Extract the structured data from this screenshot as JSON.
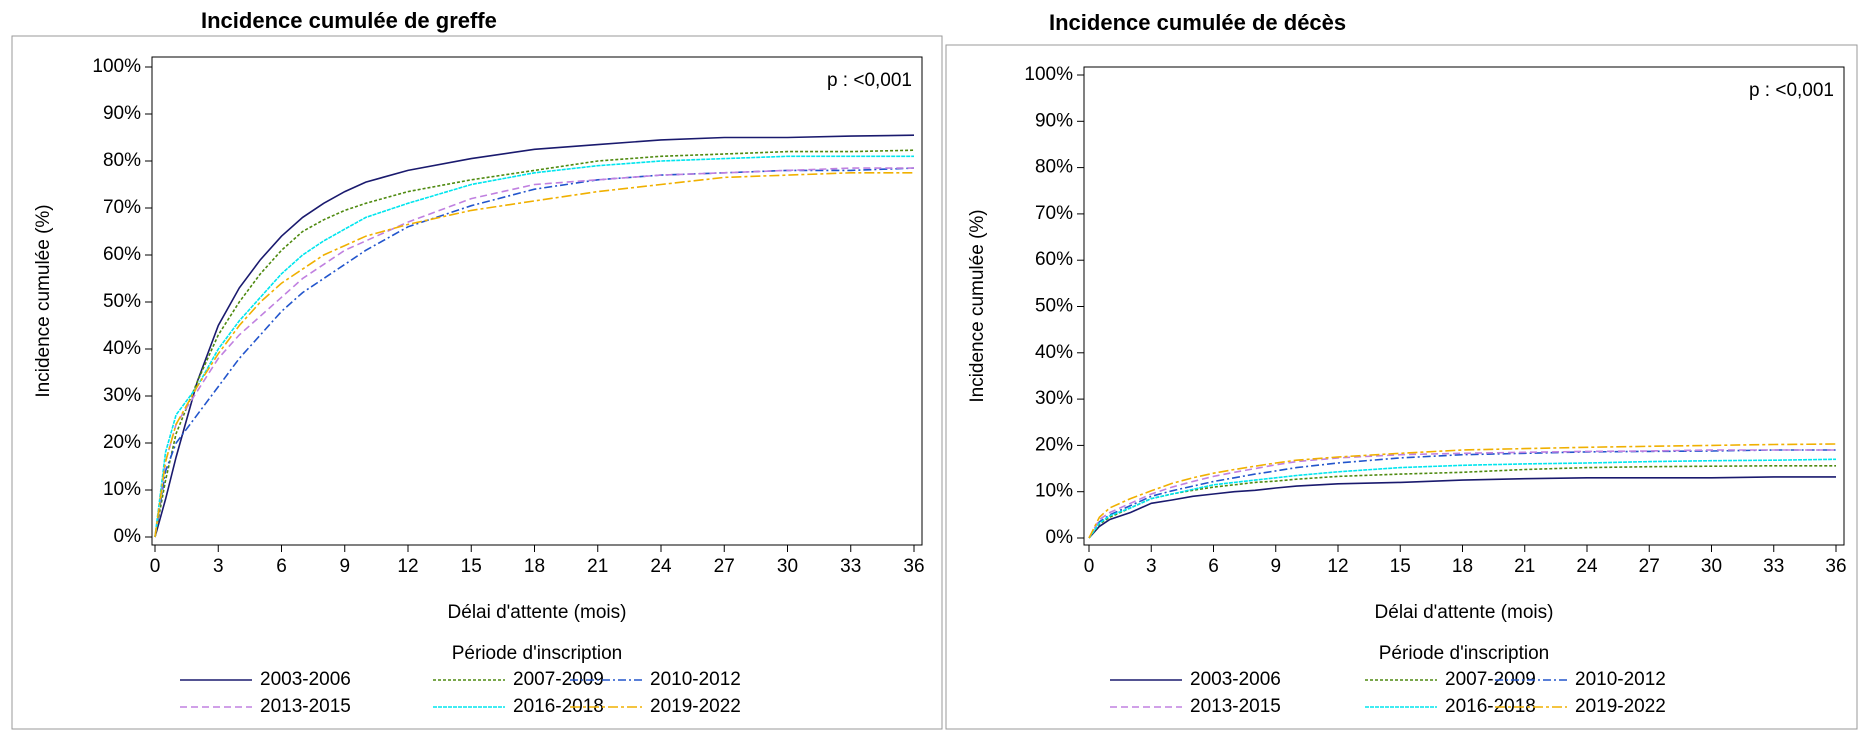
{
  "chart_data": [
    {
      "type": "line",
      "title": "Incidence cumulée de greffe",
      "x_label": "Délai d'attente (mois)",
      "y_label": "Incidence cumulée (%)",
      "annotation": "p : <0,001",
      "legend_title": "Période d'inscription",
      "x": [
        0,
        0.5,
        1,
        2,
        3,
        4,
        5,
        6,
        7,
        8,
        9,
        10,
        12,
        15,
        18,
        21,
        24,
        27,
        30,
        33,
        36
      ],
      "series": [
        {
          "name": "2003-2006",
          "color": "#1a1a6e",
          "values": [
            0,
            8,
            17,
            33,
            45,
            53,
            59,
            64,
            68,
            71,
            73.5,
            75.5,
            78,
            80.5,
            82.5,
            83.5,
            84.5,
            85,
            85,
            85.3,
            85.5
          ]
        },
        {
          "name": "2007-2009",
          "color": "#4f8a10",
          "values": [
            0,
            12,
            22,
            33,
            43,
            50,
            56,
            61,
            65,
            67.5,
            69.5,
            71,
            73.5,
            76,
            78,
            80,
            81,
            81.5,
            82,
            82,
            82.3
          ]
        },
        {
          "name": "2010-2012",
          "color": "#2255cc",
          "values": [
            0,
            14,
            20,
            26,
            32,
            38,
            43,
            48,
            52,
            55,
            58,
            61,
            66,
            70.5,
            74,
            76,
            77,
            77.5,
            78,
            78,
            78.5
          ]
        },
        {
          "name": "2013-2015",
          "color": "#c080e0",
          "values": [
            0,
            16,
            24,
            31,
            38,
            43,
            47,
            51,
            55,
            58,
            61,
            63,
            67,
            72,
            75,
            76,
            77,
            77.5,
            78,
            78.5,
            78.5
          ]
        },
        {
          "name": "2016-2018",
          "color": "#00e5ee",
          "values": [
            0,
            18,
            26,
            32,
            40,
            46,
            51,
            56,
            60,
            63,
            65.5,
            68,
            71,
            75,
            77.5,
            79,
            80,
            80.5,
            81,
            81,
            81
          ]
        },
        {
          "name": "2019-2022",
          "color": "#f0b000",
          "values": [
            0,
            16,
            24,
            32,
            39,
            45,
            50,
            54,
            57,
            60,
            62,
            64,
            66.5,
            69.5,
            71.5,
            73.5,
            75,
            76.5,
            77,
            77.5,
            77.5
          ]
        }
      ],
      "xlim": [
        0,
        36
      ],
      "ylim": [
        0,
        100
      ],
      "xticks": [
        0,
        3,
        6,
        9,
        12,
        15,
        18,
        21,
        24,
        27,
        30,
        33,
        36
      ],
      "yticks": [
        {
          "value": 0,
          "label": "0%"
        },
        {
          "value": 10,
          "label": "10%"
        },
        {
          "value": 20,
          "label": "20%"
        },
        {
          "value": 30,
          "label": "30%"
        },
        {
          "value": 40,
          "label": "40%"
        },
        {
          "value": 50,
          "label": "50%"
        },
        {
          "value": 60,
          "label": "60%"
        },
        {
          "value": 70,
          "label": "70%"
        },
        {
          "value": 80,
          "label": "80%"
        },
        {
          "value": 90,
          "label": "90%"
        },
        {
          "value": 100,
          "label": "100%"
        }
      ]
    },
    {
      "type": "line",
      "title": "Incidence cumulée de décès",
      "x_label": "Délai d'attente (mois)",
      "y_label": "Incidence cumulée (%)",
      "annotation": "p : <0,001",
      "legend_title": "Période d'inscription",
      "x": [
        0,
        0.5,
        1,
        2,
        3,
        4,
        5,
        6,
        7,
        8,
        9,
        10,
        12,
        15,
        18,
        21,
        24,
        27,
        30,
        33,
        36
      ],
      "series": [
        {
          "name": "2003-2006",
          "color": "#1a1a6e",
          "values": [
            0,
            2.5,
            4,
            5.5,
            7.5,
            8.2,
            9,
            9.5,
            10,
            10.3,
            10.8,
            11.2,
            11.7,
            12,
            12.5,
            12.8,
            13,
            13,
            13,
            13.2,
            13.2
          ]
        },
        {
          "name": "2007-2009",
          "color": "#4f8a10",
          "values": [
            0,
            3,
            4.5,
            6.5,
            8.5,
            9.5,
            10.3,
            11,
            11.5,
            12,
            12.3,
            12.7,
            13.3,
            13.8,
            14.2,
            14.8,
            15.2,
            15.4,
            15.5,
            15.6,
            15.6
          ]
        },
        {
          "name": "2010-2012",
          "color": "#2255cc",
          "values": [
            0,
            3.5,
            5,
            7,
            9,
            10.2,
            11.2,
            12.2,
            13,
            13.8,
            14.5,
            15.2,
            16.2,
            17.3,
            18,
            18.3,
            18.6,
            18.7,
            18.8,
            19,
            19
          ]
        },
        {
          "name": "2013-2015",
          "color": "#c080e0",
          "values": [
            0,
            4,
            5.5,
            7.5,
            9.5,
            11,
            12.2,
            13.3,
            14.2,
            15,
            15.8,
            16.5,
            17.3,
            18,
            18.3,
            18.5,
            18.7,
            18.8,
            19,
            19,
            19
          ]
        },
        {
          "name": "2016-2018",
          "color": "#00e5ee",
          "values": [
            0,
            3.2,
            4.8,
            6.5,
            8.5,
            9.5,
            10.5,
            11.5,
            12,
            12.5,
            13,
            13.5,
            14.3,
            15.2,
            15.7,
            16,
            16.2,
            16.5,
            16.7,
            16.8,
            17
          ]
        },
        {
          "name": "2019-2022",
          "color": "#f0b000",
          "values": [
            0,
            4.5,
            6.5,
            8.5,
            10.2,
            11.8,
            13,
            14,
            14.8,
            15.5,
            16.2,
            16.8,
            17.5,
            18.3,
            19,
            19.3,
            19.6,
            19.8,
            20,
            20.2,
            20.3
          ]
        }
      ],
      "xlim": [
        0,
        36
      ],
      "ylim": [
        0,
        100
      ],
      "xticks": [
        0,
        3,
        6,
        9,
        12,
        15,
        18,
        21,
        24,
        27,
        30,
        33,
        36
      ],
      "yticks": [
        {
          "value": 0,
          "label": "0%"
        },
        {
          "value": 10,
          "label": "10%"
        },
        {
          "value": 20,
          "label": "20%"
        },
        {
          "value": 30,
          "label": "30%"
        },
        {
          "value": 40,
          "label": "40%"
        },
        {
          "value": 50,
          "label": "50%"
        },
        {
          "value": 60,
          "label": "60%"
        },
        {
          "value": 70,
          "label": "70%"
        },
        {
          "value": 80,
          "label": "80%"
        },
        {
          "value": 90,
          "label": "90%"
        },
        {
          "value": 100,
          "label": "100%"
        }
      ]
    }
  ]
}
